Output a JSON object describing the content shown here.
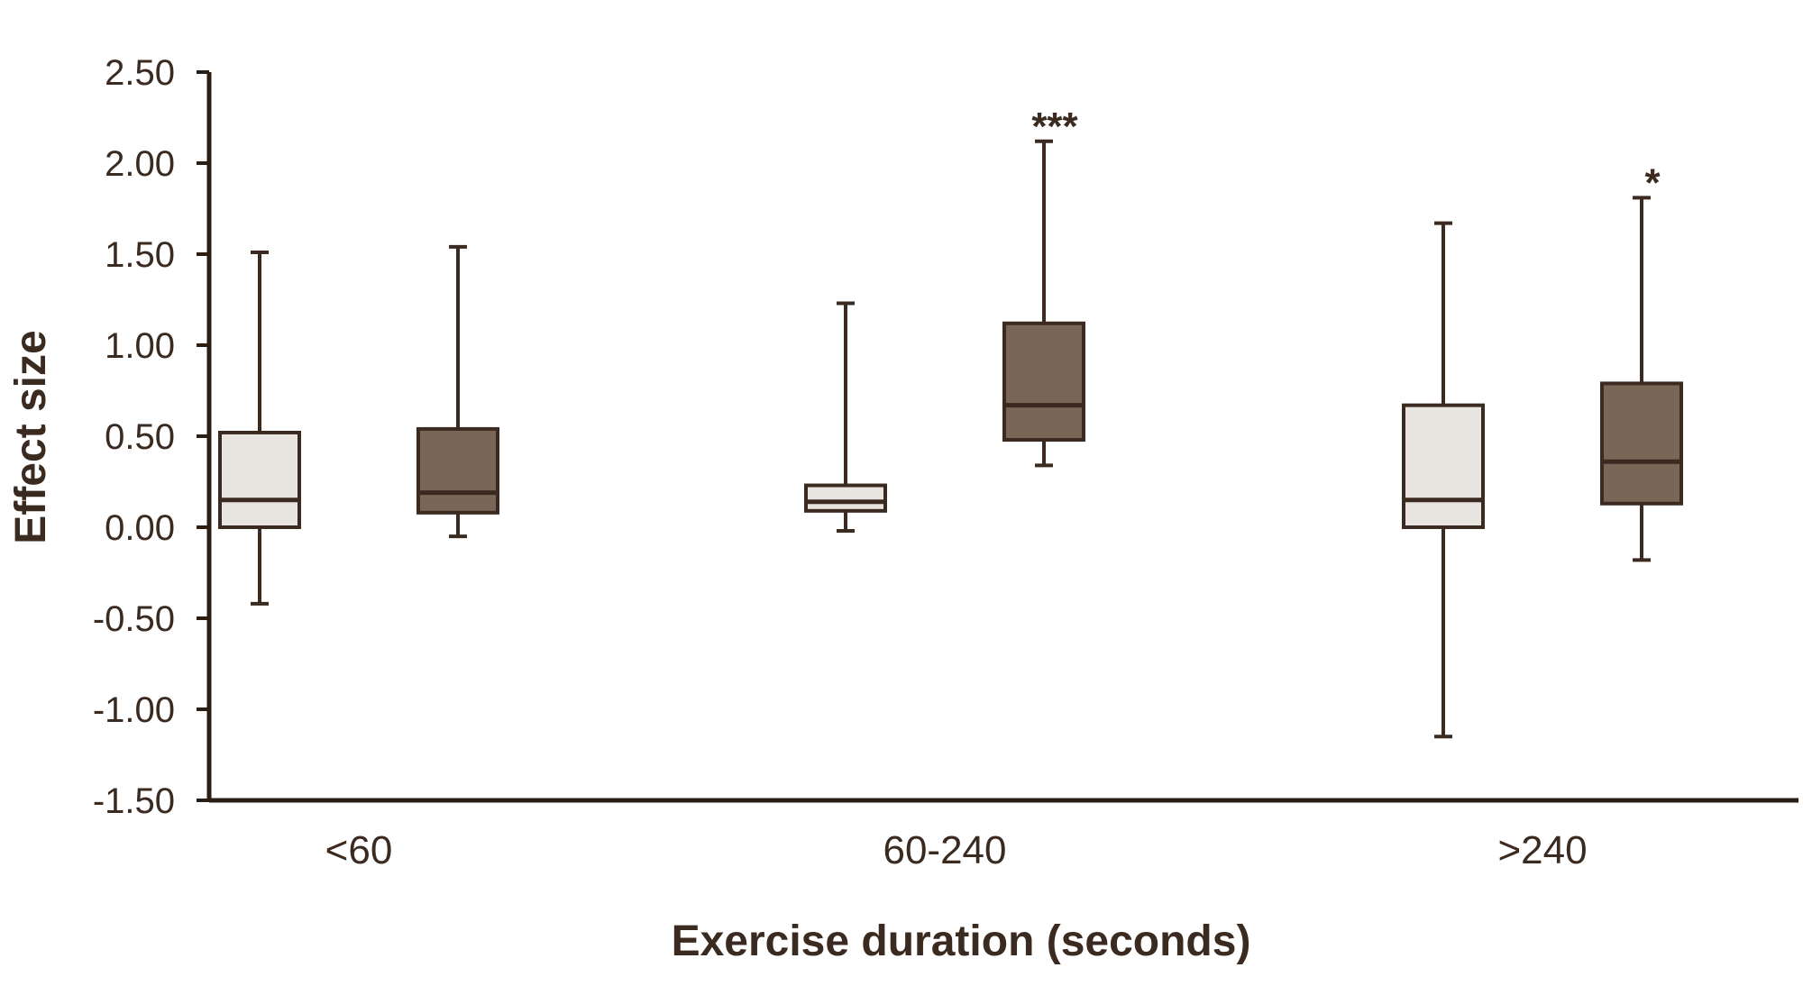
{
  "chart_data": {
    "type": "boxplot",
    "title": "",
    "xlabel": "Exercise duration (seconds)",
    "ylabel": "Effect size",
    "ylim": [
      -1.5,
      2.5
    ],
    "yticks": [
      2.5,
      2.0,
      1.5,
      1.0,
      0.5,
      0.0,
      -0.5,
      -1.0,
      -1.5
    ],
    "ytick_labels": [
      "2.50",
      "2.00",
      "1.50",
      "1.00",
      "0.50",
      "0.00",
      "-0.50",
      "-1.00",
      "-1.50"
    ],
    "categories": [
      "<60",
      "60-240",
      ">240"
    ],
    "series": [
      {
        "name": "light",
        "fill": "#e8e4e0",
        "boxes": [
          {
            "min": -0.42,
            "q1": 0.0,
            "median": 0.15,
            "q3": 0.52,
            "max": 1.51
          },
          {
            "min": -0.02,
            "q1": 0.09,
            "median": 0.14,
            "q3": 0.23,
            "max": 1.23
          },
          {
            "min": -1.15,
            "q1": 0.0,
            "median": 0.15,
            "q3": 0.67,
            "max": 1.67
          }
        ]
      },
      {
        "name": "dark",
        "fill": "#7a6656",
        "boxes": [
          {
            "min": -0.05,
            "q1": 0.08,
            "median": 0.19,
            "q3": 0.54,
            "max": 1.54
          },
          {
            "min": 0.34,
            "q1": 0.48,
            "median": 0.67,
            "q3": 1.12,
            "max": 2.12
          },
          {
            "min": -0.18,
            "q1": 0.13,
            "median": 0.36,
            "q3": 0.79,
            "max": 1.81
          }
        ]
      }
    ],
    "annotations": [
      {
        "category": "60-240",
        "series": "dark",
        "text": "***"
      },
      {
        "category": ">240",
        "series": "dark",
        "text": "*"
      }
    ]
  },
  "colors": {
    "axis": "#2a1d14",
    "outline": "#3a2a20",
    "light_box": "#e8e4e0",
    "dark_box": "#7a6656"
  }
}
